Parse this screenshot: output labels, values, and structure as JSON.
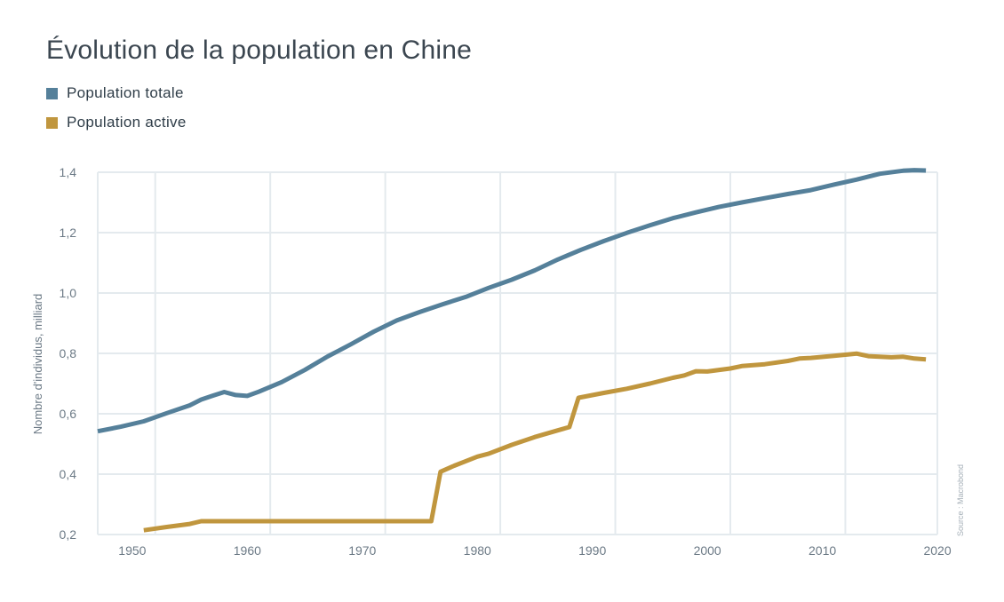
{
  "chart_data": {
    "type": "line",
    "title": "Évolution de la population en Chine",
    "ylabel": "Nombre d'individus, milliard",
    "xlabel": "",
    "xlim": [
      1948,
      2021
    ],
    "ylim": [
      0.2,
      1.4
    ],
    "x_ticks": [
      1950,
      1960,
      1970,
      1980,
      1990,
      2000,
      2010,
      2020
    ],
    "x_tick_labels": [
      "1950",
      "1960",
      "1970",
      "1980",
      "1990",
      "2000",
      "2010",
      "2020"
    ],
    "y_ticks": [
      0.2,
      0.4,
      0.6,
      0.8,
      1.0,
      1.2,
      1.4
    ],
    "y_tick_labels": [
      "0,2",
      "0,4",
      "0,6",
      "0,8",
      "1,0",
      "1,2",
      "1,4"
    ],
    "grid": true,
    "legend_position": "top-left",
    "source": "Source : Macrobond",
    "series": [
      {
        "name": "Population totale",
        "color": "#55809a",
        "x": [
          1948,
          1950,
          1952,
          1954,
          1956,
          1957,
          1958,
          1959,
          1960,
          1961,
          1962,
          1964,
          1966,
          1968,
          1970,
          1972,
          1974,
          1976,
          1978,
          1980,
          1982,
          1984,
          1986,
          1988,
          1990,
          1992,
          1994,
          1996,
          1998,
          2000,
          2002,
          2004,
          2006,
          2008,
          2010,
          2012,
          2014,
          2016,
          2018,
          2019,
          2020
        ],
        "y": [
          0.542,
          0.557,
          0.575,
          0.602,
          0.628,
          0.647,
          0.66,
          0.672,
          0.662,
          0.659,
          0.673,
          0.705,
          0.745,
          0.79,
          0.83,
          0.872,
          0.909,
          0.937,
          0.963,
          0.987,
          1.017,
          1.044,
          1.075,
          1.111,
          1.143,
          1.172,
          1.199,
          1.224,
          1.248,
          1.267,
          1.285,
          1.3,
          1.314,
          1.328,
          1.341,
          1.359,
          1.376,
          1.395,
          1.405,
          1.407,
          1.406
        ]
      },
      {
        "name": "Population active",
        "color": "#c0963e",
        "x": [
          1952,
          1954,
          1956,
          1957,
          1960,
          1965,
          1970,
          1975,
          1977,
          1977.8,
          1979,
          1980,
          1981,
          1982,
          1984,
          1986,
          1988,
          1989,
          1989.8,
          1992,
          1994,
          1996,
          1998,
          1999,
          2000,
          2001,
          2003,
          2004,
          2006,
          2008,
          2009,
          2010,
          2012,
          2014,
          2015,
          2017,
          2018,
          2019,
          2020
        ],
        "y": [
          0.214,
          0.225,
          0.235,
          0.244,
          0.244,
          0.244,
          0.244,
          0.244,
          0.244,
          0.408,
          0.428,
          0.443,
          0.458,
          0.468,
          0.497,
          0.523,
          0.545,
          0.556,
          0.653,
          0.669,
          0.683,
          0.7,
          0.719,
          0.727,
          0.741,
          0.74,
          0.75,
          0.758,
          0.764,
          0.775,
          0.783,
          0.785,
          0.792,
          0.799,
          0.791,
          0.787,
          0.789,
          0.783,
          0.78
        ]
      }
    ]
  }
}
